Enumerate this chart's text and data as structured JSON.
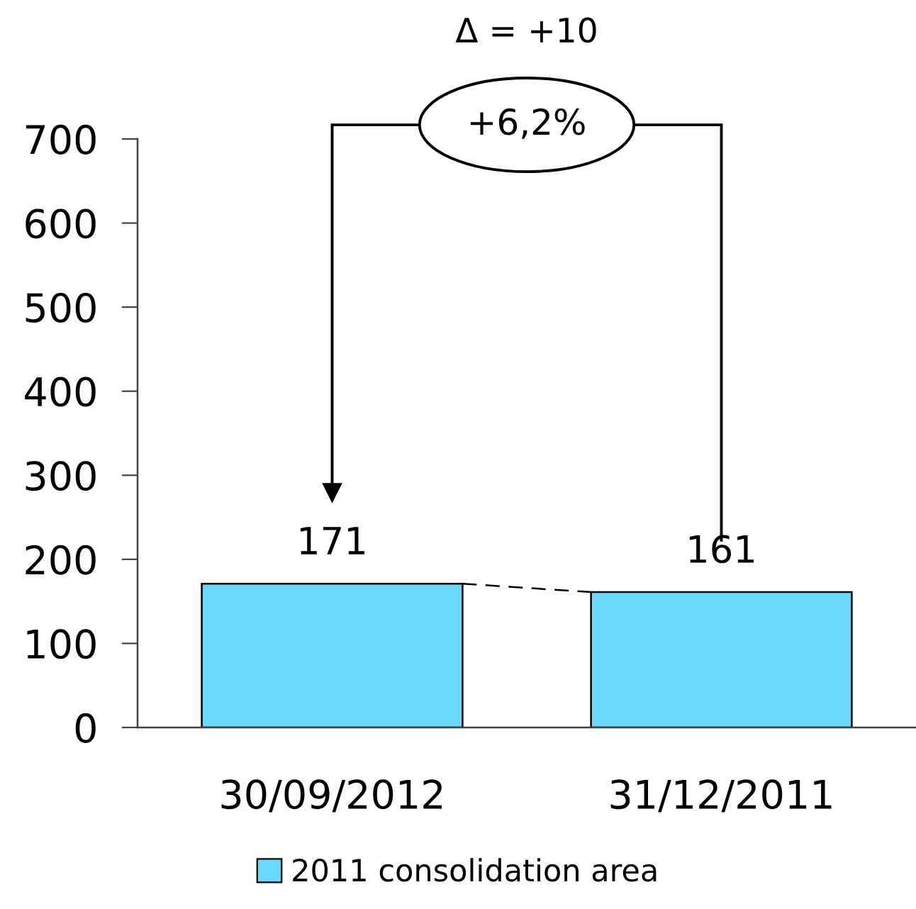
{
  "chart_data": {
    "type": "bar",
    "categories": [
      "30/09/2012",
      "31/12/2011"
    ],
    "series": [
      {
        "name": "2011 consolidation area",
        "color": "#6ad8fc",
        "values": [
          171,
          161
        ]
      }
    ],
    "ylim": [
      0,
      700
    ],
    "yticks": [
      0,
      100,
      200,
      300,
      400,
      500,
      600,
      700
    ],
    "data_labels": true,
    "legend": "bottom",
    "annotations": [
      "Δ = +10",
      "+6,2%"
    ]
  }
}
